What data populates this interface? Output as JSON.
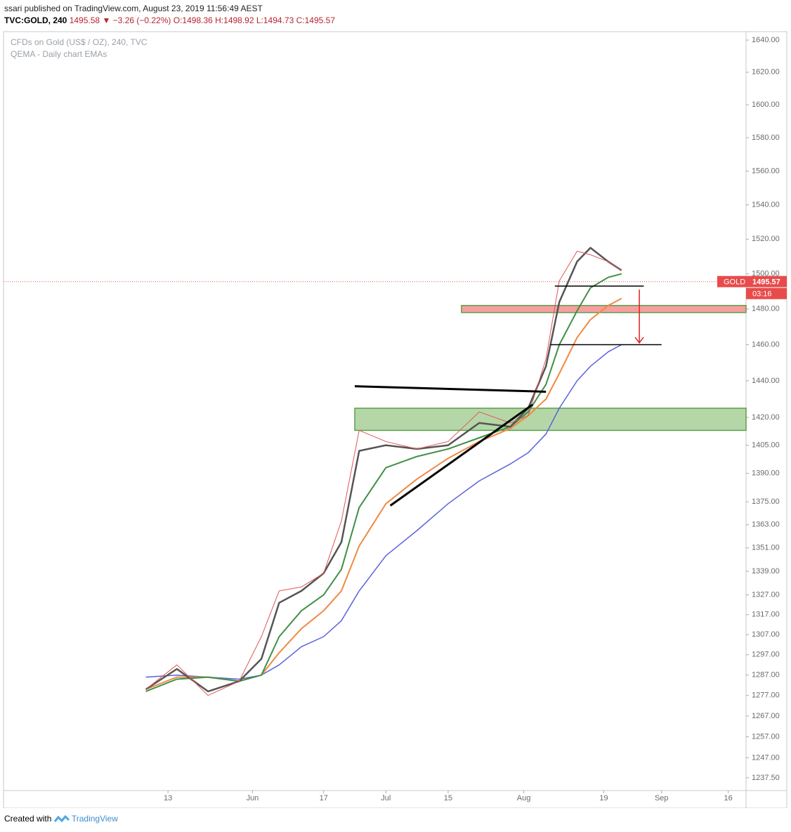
{
  "header": {
    "published": "ssari published on TradingView.com, August 23, 2019 11:56:49 AEST",
    "symbol": "TVC:GOLD, 240",
    "last": "1495.58",
    "change": "−3.26 (−0.22%)",
    "open": "O:1498.36",
    "high": "H:1498.92",
    "low": "L:1494.73",
    "close": "C:1495.57"
  },
  "footer": {
    "created": "Created with",
    "brand": "TradingView"
  },
  "chart_data": {
    "type": "line",
    "title": "CFDs on Gold (US$ / OZ), 240, TVC",
    "subtitle": "QEMA - Daily chart EMAs",
    "log_scale": true,
    "grid": false,
    "x": [
      "2019-05-08",
      "2019-05-15",
      "2019-05-22",
      "2019-05-29",
      "2019-06-03",
      "2019-06-07",
      "2019-06-12",
      "2019-06-17",
      "2019-06-21",
      "2019-06-25",
      "2019-07-01",
      "2019-07-08",
      "2019-07-15",
      "2019-07-22",
      "2019-07-29",
      "2019-08-02",
      "2019-08-06",
      "2019-08-09",
      "2019-08-13",
      "2019-08-16",
      "2019-08-20",
      "2019-08-23"
    ],
    "series": [
      {
        "color": "#5a63d8",
        "width": 1.5,
        "values": [
          1286,
          1287,
          1286,
          1285,
          1287,
          1292,
          1301,
          1306,
          1314,
          1329,
          1347,
          1360,
          1374,
          1386,
          1395,
          1401,
          1411,
          1425,
          1440,
          1448,
          1456,
          1460
        ]
      },
      {
        "color": "#ef8a44",
        "width": 2,
        "values": [
          1280,
          1286,
          1286,
          1284,
          1287,
          1298,
          1310,
          1319,
          1329,
          1352,
          1374,
          1387,
          1398,
          1407,
          1414,
          1421,
          1430,
          1444,
          1464,
          1474,
          1482,
          1486
        ]
      },
      {
        "color": "#3f8f46",
        "width": 2,
        "values": [
          1279,
          1285,
          1286,
          1284,
          1287,
          1306,
          1319,
          1327,
          1340,
          1372,
          1393,
          1399,
          1403,
          1409,
          1415,
          1423,
          1438,
          1460,
          1479,
          1492,
          1498,
          1500
        ]
      },
      {
        "color": "#555555",
        "width": 2.5,
        "values": [
          1280,
          1290,
          1279,
          1284,
          1295,
          1323,
          1329,
          1338,
          1354,
          1402,
          1405,
          1403,
          1405,
          1417,
          1415,
          1425,
          1448,
          1484,
          1507,
          1515,
          1507,
          1502
        ]
      },
      {
        "color": "#e25555",
        "width": 1,
        "values": [
          1280,
          1292,
          1277,
          1284,
          1306,
          1329,
          1331,
          1338,
          1365,
          1413,
          1407,
          1403,
          1407,
          1423,
          1417,
          1421,
          1452,
          1496,
          1513,
          1511,
          1507,
          1502
        ]
      }
    ],
    "zones": [
      {
        "from": "2019-06-24",
        "to": "2019-09-20",
        "low": 1413,
        "high": 1425,
        "color": "#8dc27a"
      },
      {
        "from": "2019-07-18",
        "to": "2019-09-20",
        "low": 1478,
        "high": 1482,
        "color": "#f26b6b"
      }
    ],
    "lines": [
      {
        "x": [
          "2019-06-24",
          "2019-08-06"
        ],
        "y": [
          1437,
          1434
        ],
        "color": "#000000",
        "width": 3
      },
      {
        "x": [
          "2019-07-02",
          "2019-08-03"
        ],
        "y": [
          1373,
          1427
        ],
        "color": "#000000",
        "width": 3
      },
      {
        "x": [
          "2019-08-08",
          "2019-08-28"
        ],
        "y": [
          1493,
          1493
        ],
        "color": "#000000",
        "width": 1.5
      },
      {
        "x": [
          "2019-08-07",
          "2019-09-01"
        ],
        "y": [
          1460,
          1460
        ],
        "color": "#000000",
        "width": 1.5
      }
    ],
    "arrow": {
      "x": "2019-08-27",
      "from": 1491,
      "to": 1461,
      "color": "#e0201e"
    },
    "last_price": 1495.57,
    "price_tag": "GOLD",
    "countdown": "03:16",
    "price_color": "#e84b4b",
    "xlim": [
      "2019-04-06",
      "2019-09-20"
    ],
    "xticks": [
      {
        "value": "2019-05-13",
        "label": "13"
      },
      {
        "value": "2019-06-01",
        "label": "Jun"
      },
      {
        "value": "2019-06-17",
        "label": "17"
      },
      {
        "value": "2019-07-01",
        "label": "Jul"
      },
      {
        "value": "2019-07-15",
        "label": "15"
      },
      {
        "value": "2019-08-01",
        "label": "Aug"
      },
      {
        "value": "2019-08-19",
        "label": "19"
      },
      {
        "value": "2019-09-01",
        "label": "Sep"
      },
      {
        "value": "2019-09-16",
        "label": "16"
      }
    ],
    "ylim": [
      1231.5,
      1645.3
    ],
    "yticks": [
      {
        "value": 1640,
        "label": "1640.00"
      },
      {
        "value": 1620,
        "label": "1620.00"
      },
      {
        "value": 1600,
        "label": "1600.00"
      },
      {
        "value": 1580,
        "label": "1580.00"
      },
      {
        "value": 1560,
        "label": "1560.00"
      },
      {
        "value": 1540,
        "label": "1540.00"
      },
      {
        "value": 1520,
        "label": "1520.00"
      },
      {
        "value": 1500,
        "label": "1500.00"
      },
      {
        "value": 1480,
        "label": "1480.00"
      },
      {
        "value": 1460,
        "label": "1460.00"
      },
      {
        "value": 1440,
        "label": "1440.00"
      },
      {
        "value": 1420,
        "label": "1420.00"
      },
      {
        "value": 1405,
        "label": "1405.00"
      },
      {
        "value": 1390,
        "label": "1390.00"
      },
      {
        "value": 1375,
        "label": "1375.00"
      },
      {
        "value": 1363,
        "label": "1363.00"
      },
      {
        "value": 1351,
        "label": "1351.00"
      },
      {
        "value": 1339,
        "label": "1339.00"
      },
      {
        "value": 1327,
        "label": "1327.00"
      },
      {
        "value": 1317,
        "label": "1317.00"
      },
      {
        "value": 1307,
        "label": "1307.00"
      },
      {
        "value": 1297,
        "label": "1297.00"
      },
      {
        "value": 1287,
        "label": "1287.00"
      },
      {
        "value": 1277,
        "label": "1277.00"
      },
      {
        "value": 1267,
        "label": "1267.00"
      },
      {
        "value": 1257,
        "label": "1257.00"
      },
      {
        "value": 1247,
        "label": "1247.00"
      },
      {
        "value": 1237.5,
        "label": "1237.50"
      }
    ]
  }
}
